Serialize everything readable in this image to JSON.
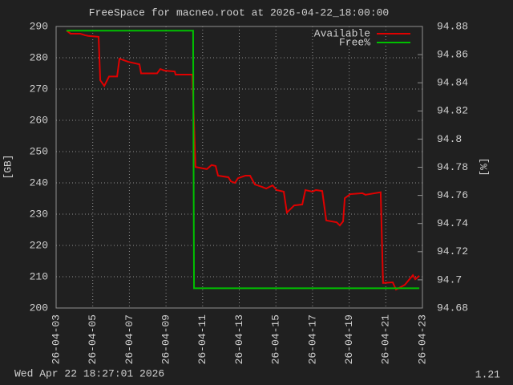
{
  "chart_data": {
    "type": "line",
    "title": "FreeSpace for macneo.root  at 2026-04-22_18:00:00",
    "ylabel": "[GB]",
    "y2label": "[%]",
    "xlim": [
      3,
      23
    ],
    "xticks": [
      {
        "value": 3,
        "label": "26-04-03"
      },
      {
        "value": 5,
        "label": "26-04-05"
      },
      {
        "value": 7,
        "label": "26-04-07"
      },
      {
        "value": 9,
        "label": "26-04-09"
      },
      {
        "value": 11,
        "label": "26-04-11"
      },
      {
        "value": 13,
        "label": "26-04-13"
      },
      {
        "value": 15,
        "label": "26-04-15"
      },
      {
        "value": 17,
        "label": "26-04-17"
      },
      {
        "value": 19,
        "label": "26-04-19"
      },
      {
        "value": 21,
        "label": "26-04-21"
      },
      {
        "value": 23,
        "label": "26-04-23"
      }
    ],
    "ylim": [
      200,
      290
    ],
    "yticks": [
      200,
      210,
      220,
      230,
      240,
      250,
      260,
      270,
      280,
      290
    ],
    "y2lim": [
      94.68,
      94.88
    ],
    "y2ticks": [
      94.68,
      94.7,
      94.72,
      94.74,
      94.76,
      94.78,
      94.8,
      94.82,
      94.84,
      94.86,
      94.88
    ],
    "grid": true,
    "legend": "top-right",
    "series": [
      {
        "name": "Available",
        "color": "#e00000",
        "axis": "y",
        "x": [
          3.57,
          3.79,
          4.31,
          4.58,
          4.75,
          5.32,
          5.41,
          5.63,
          5.89,
          6.33,
          6.46,
          6.94,
          7.55,
          7.64,
          8.51,
          8.69,
          8.91,
          9.48,
          9.52,
          10.44,
          10.61,
          11.23,
          11.49,
          11.71,
          11.84,
          12.41,
          12.54,
          12.76,
          12.93,
          13.33,
          13.59,
          13.85,
          14.25,
          14.47,
          14.82,
          15.04,
          15.43,
          15.6,
          16.0,
          16.44,
          16.61,
          17.0,
          17.18,
          17.53,
          17.75,
          18.32,
          18.49,
          18.67,
          18.76,
          19.06,
          19.72,
          19.89,
          20.72,
          20.85,
          21.38,
          21.56,
          22.04,
          22.48,
          22.61,
          22.83
        ],
        "values": [
          288.7,
          287.7,
          287.7,
          287.2,
          287,
          286.7,
          272.8,
          271,
          274,
          274,
          279.7,
          278.7,
          277.9,
          275,
          275,
          276.4,
          275.9,
          275.6,
          274.6,
          274.6,
          245.1,
          244.4,
          245.7,
          245.4,
          242.3,
          241.8,
          240.5,
          240,
          241.5,
          242.3,
          242.3,
          239.5,
          238.7,
          238.2,
          239.2,
          237.7,
          237.2,
          230.5,
          232.8,
          233.1,
          237.7,
          237.2,
          237.7,
          237.4,
          228,
          227.4,
          226.4,
          227.7,
          235.1,
          236.4,
          236.7,
          236.2,
          237,
          208,
          208.2,
          205.9,
          207.4,
          210.5,
          209.2,
          210.3
        ]
      },
      {
        "name": "Free%",
        "color": "#00c000",
        "axis": "y2",
        "x": [
          3.57,
          10.48,
          10.53,
          22.83
        ],
        "values": [
          94.877,
          94.877,
          94.694,
          94.694
        ]
      }
    ]
  },
  "footer": {
    "timestamp": "Wed Apr 22 18:27:01 2026",
    "version": "1.21"
  }
}
